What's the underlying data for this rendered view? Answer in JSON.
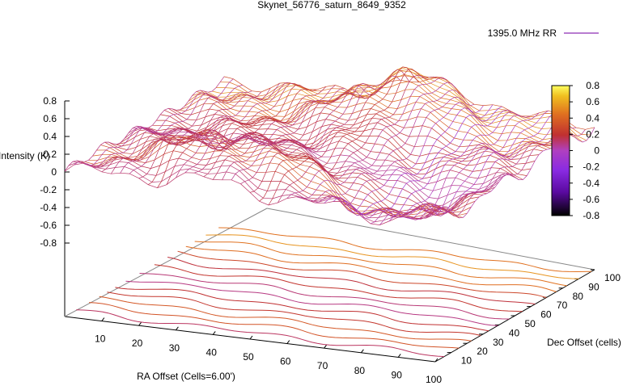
{
  "chart_data": {
    "type": "surface",
    "title": "Skynet_56776_saturn_8649_9352",
    "series": [
      {
        "name": "1395.0 MHz RR"
      }
    ],
    "xlabel": "RA Offset (Cells=6.00')",
    "ylabel": "Dec Offset (cells)",
    "zlabel": "Intensity (K)",
    "x_ticks": [
      "10",
      "20",
      "30",
      "40",
      "50",
      "60",
      "70",
      "80",
      "90",
      "100"
    ],
    "y_ticks": [
      "10",
      "20",
      "30",
      "40",
      "50",
      "60",
      "70",
      "80",
      "90",
      "100"
    ],
    "z_ticks": [
      "0.8",
      "0.6",
      "0.4",
      "0.2",
      "0",
      "-0.2",
      "-0.4",
      "-0.6",
      "-0.8"
    ],
    "colorbar_ticks": [
      "0.8",
      "0.6",
      "0.4",
      "0.2",
      "0",
      "-0.2",
      "-0.4",
      "-0.6",
      "-0.8"
    ],
    "xlim": [
      0,
      100
    ],
    "ylim": [
      0,
      100
    ],
    "zlim": [
      -0.8,
      0.8
    ],
    "colorbar_range": [
      -0.8,
      0.8
    ],
    "contours_on_base": true,
    "legend_position": "top-right",
    "colormap": [
      "#000000",
      "#5a0aa0",
      "#8a2be2",
      "#b040c0",
      "#c03030",
      "#e07020",
      "#f0c020",
      "#ffff60"
    ]
  }
}
